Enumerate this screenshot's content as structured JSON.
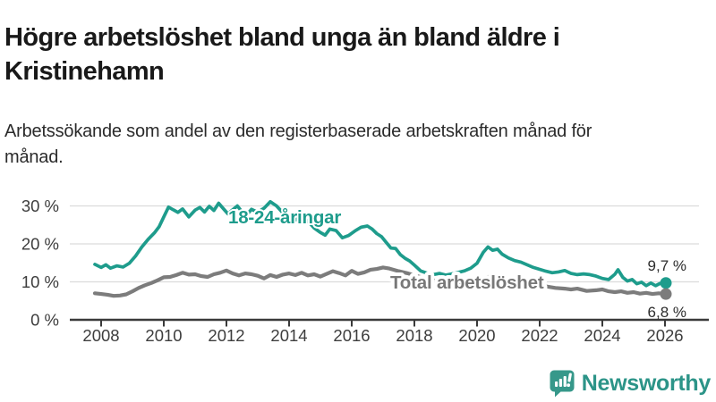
{
  "header": {
    "title": "Högre arbetslöshet bland unga än bland äldre i Kristinehamn",
    "subtitle": "Arbetssökande som andel av den registerbaserade arbetskraften månad för månad."
  },
  "footer": {
    "brand": "Newsworthy"
  },
  "colors": {
    "youth_line": "#1e9c8c",
    "total_line": "#7c7c7c",
    "total_label": "#787878",
    "grid": "#dcdcdc",
    "axis": "#3a3a3a",
    "tick_text": "#3d3d3d",
    "value_text": "#2d2d2d",
    "brand_teal": "#2c9488",
    "brand_icon": "#36988a"
  },
  "chart_data": {
    "type": "line",
    "title": "Högre arbetslöshet bland unga än bland äldre i Kristinehamn",
    "subtitle": "Arbetssökande som andel av den registerbaserade arbetskraften månad för månad.",
    "xlabel": "",
    "ylabel": "",
    "xlim": [
      2007.6,
      2026.6
    ],
    "ylim": [
      0,
      33
    ],
    "grid": "horizontal",
    "legend_position": "inline-labels",
    "x_ticks": [
      2008,
      2010,
      2012,
      2014,
      2016,
      2018,
      2020,
      2022,
      2024,
      2026
    ],
    "x_tick_labels": [
      "2008",
      "2010",
      "2012",
      "2014",
      "2016",
      "2018",
      "2020",
      "2022",
      "2024",
      "2026"
    ],
    "y_ticks": [
      0,
      10,
      20,
      30
    ],
    "y_tick_labels": [
      "0 %",
      "10 %",
      "20 %",
      "30 %"
    ],
    "y_gridlines": [
      10,
      20,
      30
    ],
    "series": [
      {
        "id": "youth",
        "name": "18-24-åringar",
        "color": "#1e9c8c",
        "end_value": 9.7,
        "end_label": "9,7 %",
        "points": [
          [
            2007.8,
            14.6
          ],
          [
            2008.0,
            13.8
          ],
          [
            2008.15,
            14.5
          ],
          [
            2008.3,
            13.6
          ],
          [
            2008.5,
            14.2
          ],
          [
            2008.7,
            13.9
          ],
          [
            2008.9,
            14.9
          ],
          [
            2009.1,
            16.8
          ],
          [
            2009.3,
            19.2
          ],
          [
            2009.5,
            21.2
          ],
          [
            2009.7,
            22.9
          ],
          [
            2009.85,
            24.5
          ],
          [
            2010.0,
            27.1
          ],
          [
            2010.15,
            29.7
          ],
          [
            2010.3,
            29.0
          ],
          [
            2010.45,
            28.3
          ],
          [
            2010.6,
            29.2
          ],
          [
            2010.8,
            27.1
          ],
          [
            2011.0,
            28.9
          ],
          [
            2011.15,
            29.6
          ],
          [
            2011.3,
            28.4
          ],
          [
            2011.45,
            29.9
          ],
          [
            2011.6,
            28.8
          ],
          [
            2011.75,
            30.7
          ],
          [
            2011.9,
            29.3
          ],
          [
            2012.05,
            27.9
          ],
          [
            2012.2,
            29.0
          ],
          [
            2012.35,
            30.0
          ],
          [
            2012.5,
            28.4
          ],
          [
            2012.65,
            27.7
          ],
          [
            2012.8,
            29.1
          ],
          [
            2013.0,
            28.3
          ],
          [
            2013.2,
            29.4
          ],
          [
            2013.4,
            31.1
          ],
          [
            2013.6,
            30.0
          ],
          [
            2013.8,
            28.2
          ],
          [
            2014.0,
            27.4
          ],
          [
            2014.2,
            26.3
          ],
          [
            2014.4,
            27.1
          ],
          [
            2014.6,
            26.0
          ],
          [
            2014.8,
            24.2
          ],
          [
            2015.0,
            23.0
          ],
          [
            2015.15,
            22.3
          ],
          [
            2015.3,
            23.9
          ],
          [
            2015.5,
            23.5
          ],
          [
            2015.7,
            21.6
          ],
          [
            2015.9,
            22.2
          ],
          [
            2016.1,
            23.4
          ],
          [
            2016.3,
            24.4
          ],
          [
            2016.5,
            24.7
          ],
          [
            2016.65,
            23.9
          ],
          [
            2016.8,
            22.7
          ],
          [
            2016.95,
            21.9
          ],
          [
            2017.1,
            20.4
          ],
          [
            2017.25,
            18.9
          ],
          [
            2017.4,
            18.8
          ],
          [
            2017.55,
            17.2
          ],
          [
            2017.7,
            16.2
          ],
          [
            2017.85,
            15.5
          ],
          [
            2018.0,
            14.4
          ],
          [
            2018.2,
            12.9
          ],
          [
            2018.4,
            12.3
          ],
          [
            2018.6,
            11.9
          ],
          [
            2018.8,
            12.2
          ],
          [
            2019.0,
            11.8
          ],
          [
            2019.2,
            12.1
          ],
          [
            2019.4,
            12.5
          ],
          [
            2019.6,
            12.9
          ],
          [
            2019.8,
            13.6
          ],
          [
            2020.0,
            14.9
          ],
          [
            2020.2,
            17.8
          ],
          [
            2020.35,
            19.2
          ],
          [
            2020.5,
            18.3
          ],
          [
            2020.65,
            18.6
          ],
          [
            2020.8,
            17.3
          ],
          [
            2021.0,
            16.3
          ],
          [
            2021.2,
            15.6
          ],
          [
            2021.4,
            15.2
          ],
          [
            2021.6,
            14.5
          ],
          [
            2021.8,
            13.8
          ],
          [
            2022.0,
            13.3
          ],
          [
            2022.2,
            12.8
          ],
          [
            2022.4,
            12.4
          ],
          [
            2022.6,
            12.6
          ],
          [
            2022.8,
            13.0
          ],
          [
            2023.0,
            12.2
          ],
          [
            2023.2,
            11.9
          ],
          [
            2023.4,
            12.1
          ],
          [
            2023.6,
            11.9
          ],
          [
            2023.8,
            11.5
          ],
          [
            2024.0,
            10.9
          ],
          [
            2024.2,
            10.6
          ],
          [
            2024.4,
            12.0
          ],
          [
            2024.5,
            13.2
          ],
          [
            2024.65,
            11.2
          ],
          [
            2024.8,
            10.2
          ],
          [
            2024.95,
            10.6
          ],
          [
            2025.1,
            9.5
          ],
          [
            2025.25,
            9.9
          ],
          [
            2025.4,
            9.0
          ],
          [
            2025.55,
            9.7
          ],
          [
            2025.7,
            9.0
          ],
          [
            2025.85,
            9.6
          ],
          [
            2026.05,
            9.7
          ]
        ]
      },
      {
        "id": "total",
        "name": "Total arbetslöshet",
        "color": "#7c7c7c",
        "end_value": 6.8,
        "end_label": "6,8 %",
        "points": [
          [
            2007.8,
            7.0
          ],
          [
            2008.0,
            6.8
          ],
          [
            2008.2,
            6.6
          ],
          [
            2008.4,
            6.3
          ],
          [
            2008.6,
            6.4
          ],
          [
            2008.8,
            6.7
          ],
          [
            2009.0,
            7.5
          ],
          [
            2009.2,
            8.4
          ],
          [
            2009.4,
            9.1
          ],
          [
            2009.6,
            9.7
          ],
          [
            2009.8,
            10.4
          ],
          [
            2010.0,
            11.2
          ],
          [
            2010.2,
            11.3
          ],
          [
            2010.4,
            11.8
          ],
          [
            2010.6,
            12.4
          ],
          [
            2010.8,
            11.9
          ],
          [
            2011.0,
            12.0
          ],
          [
            2011.2,
            11.5
          ],
          [
            2011.4,
            11.3
          ],
          [
            2011.6,
            12.0
          ],
          [
            2011.8,
            12.4
          ],
          [
            2012.0,
            13.0
          ],
          [
            2012.2,
            12.2
          ],
          [
            2012.4,
            11.7
          ],
          [
            2012.6,
            12.2
          ],
          [
            2012.8,
            12.0
          ],
          [
            2013.0,
            11.6
          ],
          [
            2013.2,
            10.9
          ],
          [
            2013.4,
            11.8
          ],
          [
            2013.6,
            11.3
          ],
          [
            2013.8,
            11.9
          ],
          [
            2014.0,
            12.2
          ],
          [
            2014.2,
            11.8
          ],
          [
            2014.4,
            12.4
          ],
          [
            2014.6,
            11.7
          ],
          [
            2014.8,
            12.0
          ],
          [
            2015.0,
            11.4
          ],
          [
            2015.2,
            12.1
          ],
          [
            2015.4,
            12.8
          ],
          [
            2015.6,
            12.3
          ],
          [
            2015.8,
            11.7
          ],
          [
            2016.0,
            12.9
          ],
          [
            2016.2,
            12.1
          ],
          [
            2016.4,
            12.5
          ],
          [
            2016.6,
            13.2
          ],
          [
            2016.8,
            13.4
          ],
          [
            2017.0,
            13.8
          ],
          [
            2017.2,
            13.5
          ],
          [
            2017.5,
            12.8
          ],
          [
            2017.8,
            12.2
          ],
          [
            2018.1,
            11.5
          ],
          [
            2018.4,
            10.8
          ],
          [
            2018.7,
            10.2
          ],
          [
            2019.0,
            9.6
          ],
          [
            2019.4,
            9.2
          ],
          [
            2019.8,
            9.4
          ],
          [
            2020.1,
            10.6
          ],
          [
            2020.4,
            11.4
          ],
          [
            2020.7,
            11.2
          ],
          [
            2021.0,
            10.8
          ],
          [
            2021.4,
            10.0
          ],
          [
            2021.8,
            9.3
          ],
          [
            2022.2,
            8.8
          ],
          [
            2022.5,
            8.4
          ],
          [
            2022.8,
            8.2
          ],
          [
            2023.0,
            8.0
          ],
          [
            2023.2,
            8.2
          ],
          [
            2023.5,
            7.6
          ],
          [
            2023.8,
            7.8
          ],
          [
            2024.0,
            8.0
          ],
          [
            2024.2,
            7.5
          ],
          [
            2024.4,
            7.3
          ],
          [
            2024.6,
            7.5
          ],
          [
            2024.8,
            7.1
          ],
          [
            2025.0,
            7.3
          ],
          [
            2025.2,
            6.9
          ],
          [
            2025.4,
            7.1
          ],
          [
            2025.6,
            6.8
          ],
          [
            2025.8,
            7.0
          ],
          [
            2026.05,
            6.8
          ]
        ]
      }
    ]
  }
}
